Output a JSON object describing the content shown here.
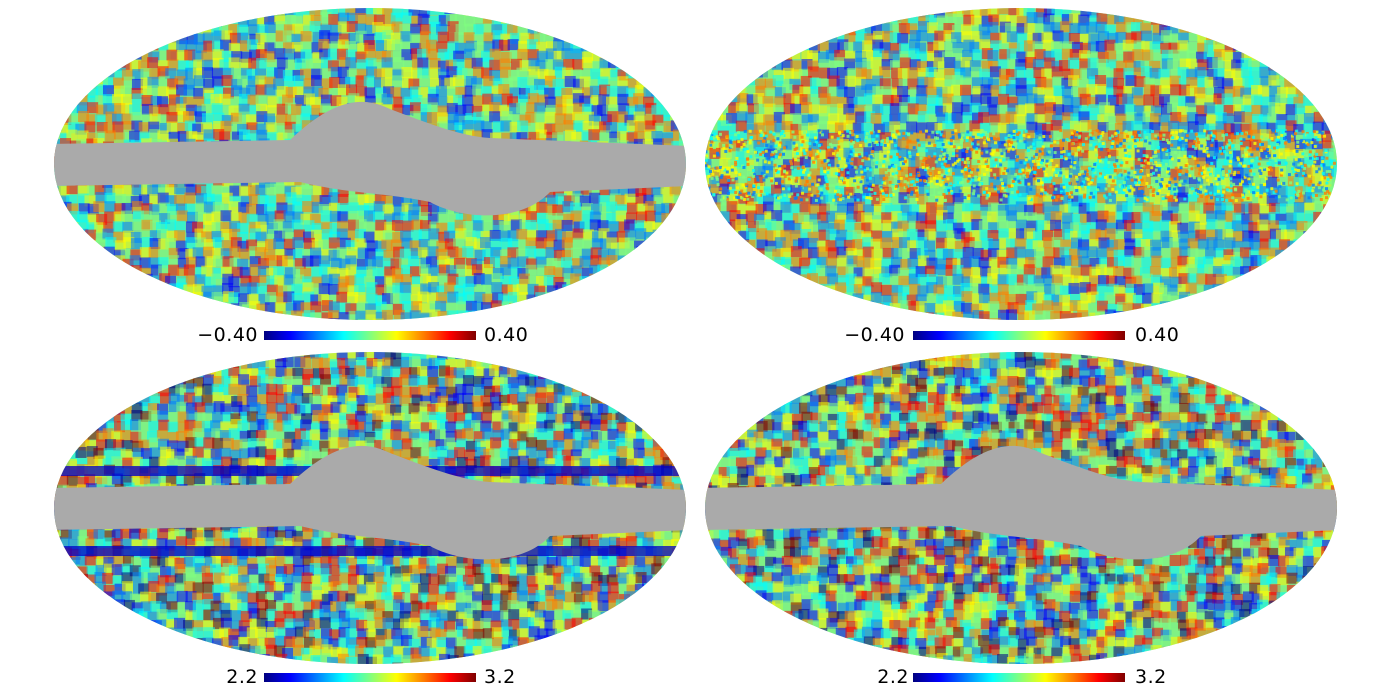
{
  "colormap": [
    "#00007f",
    "#0000ff",
    "#0080ff",
    "#00ffff",
    "#80ff80",
    "#ffff00",
    "#ff8000",
    "#ff0000",
    "#7f0000"
  ],
  "mask_color": "#aaaaaa",
  "panels": [
    {
      "id": "top-left",
      "map": "temperature-like field with galactic mask",
      "colorbar": {
        "min_label": "−0.40",
        "max_label": "0.40"
      },
      "mask": "wide",
      "filled_plane": false
    },
    {
      "id": "top-right",
      "map": "full-sky field with noisy galactic plane",
      "colorbar": {
        "min_label": "−0.40",
        "max_label": "0.40"
      },
      "mask": "none",
      "filled_plane": true
    },
    {
      "id": "bottom-left",
      "map": "spectral-index-like field with mask",
      "colorbar": {
        "min_label": "2.2",
        "max_label": "3.2"
      },
      "mask": "wide",
      "filled_plane": false
    },
    {
      "id": "bottom-right",
      "map": "spectral-index-like field with mask",
      "colorbar": {
        "min_label": "2.2",
        "max_label": "3.2"
      },
      "mask": "wide",
      "filled_plane": false
    }
  ]
}
